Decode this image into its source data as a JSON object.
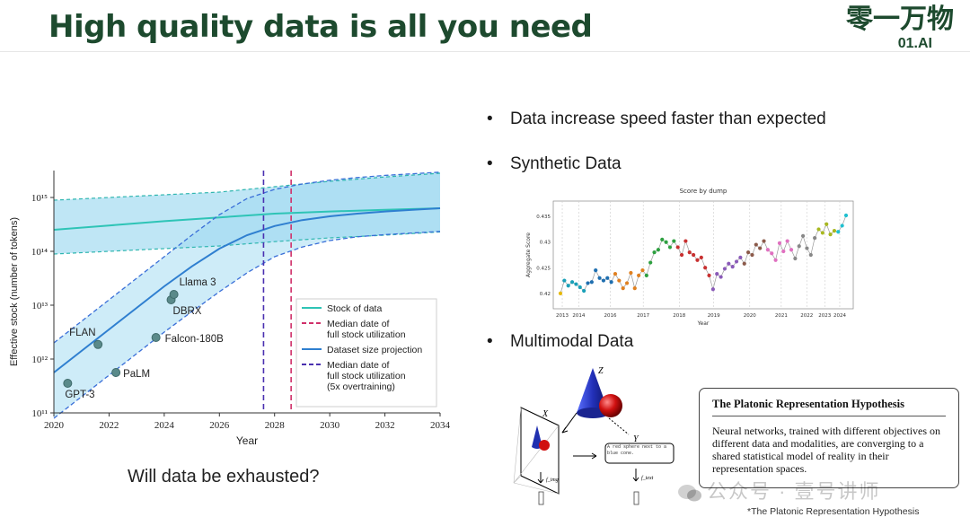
{
  "slide": {
    "title": "High quality data is all you need",
    "question": "Will data be exhausted?",
    "logo_cn": "零一万物",
    "logo_en": "01.AI"
  },
  "bullets": [
    "Data increase speed faster than expected",
    "Synthetic Data",
    "Multimodal Data"
  ],
  "chart_data": [
    {
      "type": "line",
      "xlabel": "Year",
      "ylabel": "Effective stock (number of tokens)",
      "xlim": [
        2020,
        2034
      ],
      "ylim_log10": [
        11,
        15.5
      ],
      "y_scale": "log",
      "x_ticks": [
        "2020",
        "2022",
        "2024",
        "2026",
        "2028",
        "2030",
        "2032",
        "2034"
      ],
      "y_ticks": [
        "10¹¹",
        "10¹²",
        "10¹³",
        "10¹⁴",
        "10¹⁵"
      ],
      "y_tick_values_log10": [
        11,
        12,
        13,
        14,
        15
      ],
      "legend_position": "bottom-right",
      "legend": [
        "Stock of data",
        "Median date of full stock utilization",
        "Dataset size projection",
        "Median date of full stock utilization (5x overtraining)"
      ],
      "stock_of_data_log10": {
        "x": [
          2020,
          2022,
          2024,
          2026,
          2028,
          2030,
          2032,
          2034
        ],
        "mid": [
          14.4,
          14.48,
          14.56,
          14.63,
          14.7,
          14.74,
          14.77,
          14.8
        ],
        "upper": [
          14.95,
          15.0,
          15.05,
          15.1,
          15.2,
          15.3,
          15.38,
          15.45
        ],
        "lower": [
          13.95,
          14.0,
          14.05,
          14.1,
          14.18,
          14.25,
          14.3,
          14.36
        ]
      },
      "projection_log10": {
        "x": [
          2020,
          2021,
          2022,
          2023,
          2024,
          2025,
          2026,
          2027,
          2028,
          2029,
          2030,
          2031,
          2032,
          2033,
          2034
        ],
        "mid": [
          11.75,
          12.15,
          12.55,
          12.95,
          13.35,
          13.72,
          14.05,
          14.3,
          14.47,
          14.58,
          14.65,
          14.7,
          14.74,
          14.77,
          14.8
        ],
        "upper": [
          12.3,
          12.7,
          13.1,
          13.5,
          13.9,
          14.3,
          14.68,
          14.98,
          15.15,
          15.25,
          15.32,
          15.37,
          15.41,
          15.44,
          15.47
        ],
        "lower": [
          10.9,
          11.3,
          11.7,
          12.1,
          12.5,
          12.88,
          13.25,
          13.6,
          13.9,
          14.08,
          14.2,
          14.27,
          14.31,
          14.34,
          14.37
        ]
      },
      "median_dates": {
        "full_stock": 2028.6,
        "overtraining_5x": 2027.6
      },
      "models": [
        {
          "name": "GPT-3",
          "year": 2020.5,
          "log10_tokens": 11.55
        },
        {
          "name": "FLAN",
          "year": 2021.6,
          "log10_tokens": 12.27
        },
        {
          "name": "PaLM",
          "year": 2022.25,
          "log10_tokens": 11.75
        },
        {
          "name": "Falcon-180B",
          "year": 2023.7,
          "log10_tokens": 12.4
        },
        {
          "name": "DBRX",
          "year": 2024.25,
          "log10_tokens": 13.1
        },
        {
          "name": "Llama 3",
          "year": 2024.35,
          "log10_tokens": 13.2
        }
      ]
    },
    {
      "type": "scatter",
      "title": "Score by dump",
      "xlabel": "Year",
      "ylabel": "Aggregate Score",
      "ylim": [
        0.417,
        0.438
      ],
      "y_ticks": [
        "0.42",
        "0.425",
        "0.43",
        "0.435"
      ],
      "y_tick_values": [
        0.42,
        0.425,
        0.43,
        0.435
      ],
      "x_ticks": [
        "2013",
        "2014",
        "2016",
        "2017",
        "2018",
        "2019",
        "2020",
        "2021",
        "2022",
        "2023",
        "2024"
      ],
      "x_tick_positions": [
        0.03,
        0.085,
        0.19,
        0.3,
        0.42,
        0.535,
        0.655,
        0.76,
        0.845,
        0.905,
        0.955
      ],
      "scores": [
        0.42,
        0.4225,
        0.4215,
        0.4222,
        0.4218,
        0.4212,
        0.4205,
        0.422,
        0.4222,
        0.4245,
        0.423,
        0.4225,
        0.423,
        0.4222,
        0.4238,
        0.4225,
        0.421,
        0.422,
        0.424,
        0.421,
        0.4235,
        0.4245,
        0.4235,
        0.426,
        0.428,
        0.4285,
        0.4305,
        0.43,
        0.429,
        0.4302,
        0.429,
        0.4275,
        0.4302,
        0.428,
        0.4275,
        0.4265,
        0.427,
        0.425,
        0.4235,
        0.4208,
        0.4238,
        0.4232,
        0.4248,
        0.4258,
        0.4252,
        0.4262,
        0.427,
        0.4258,
        0.428,
        0.4275,
        0.4295,
        0.4288,
        0.4302,
        0.4285,
        0.4278,
        0.4265,
        0.4298,
        0.4282,
        0.4302,
        0.4285,
        0.4268,
        0.4292,
        0.4312,
        0.4288,
        0.4275,
        0.4308,
        0.4325,
        0.4318,
        0.4335,
        0.4315,
        0.4322,
        0.432,
        0.4332,
        0.4352
      ],
      "colors": [
        "#e6b800",
        "#1aa0b8",
        "#1aa0b8",
        "#1aa0b8",
        "#1aa0b8",
        "#1aa0b8",
        "#1aa0b8",
        "#1f6fb0",
        "#1f6fb0",
        "#1f6fb0",
        "#1f6fb0",
        "#1f6fb0",
        "#1f6fb0",
        "#1f6fb0",
        "#e08020",
        "#e08020",
        "#e08020",
        "#e08020",
        "#e08020",
        "#e08020",
        "#e08020",
        "#e08020",
        "#2ea040",
        "#2ea040",
        "#2ea040",
        "#2ea040",
        "#2ea040",
        "#2ea040",
        "#2ea040",
        "#2ea040",
        "#c83030",
        "#c83030",
        "#c83030",
        "#c83030",
        "#c83030",
        "#c83030",
        "#c83030",
        "#c83030",
        "#c83030",
        "#8a5ab8",
        "#8a5ab8",
        "#8a5ab8",
        "#8a5ab8",
        "#8a5ab8",
        "#8a5ab8",
        "#8a5ab8",
        "#8a5ab8",
        "#8b5a4a",
        "#8b5a4a",
        "#8b5a4a",
        "#8b5a4a",
        "#8b5a4a",
        "#8b5a4a",
        "#e070c0",
        "#e070c0",
        "#e070c0",
        "#e070c0",
        "#e070c0",
        "#e070c0",
        "#e070c0",
        "#888888",
        "#888888",
        "#888888",
        "#888888",
        "#888888",
        "#888888",
        "#a8b820",
        "#a8b820",
        "#a8b820",
        "#a8b820",
        "#a8b820",
        "#20c0d0",
        "#20c0d0",
        "#20c0d0"
      ]
    }
  ],
  "multimodal": {
    "label_x": "X",
    "label_y": "Y",
    "label_z": "Z",
    "f_img": "f_img",
    "f_text": "f_text",
    "caption_text": "A red sphere next to a blue cone.",
    "prh_title": "The Platonic Representation Hypothesis",
    "prh_body": "Neural networks, trained with different objectives on different data and modalities, are converging to a shared statistical model of reality in their representation spaces.",
    "footnote": "*The Platonic Representation Hypothesis"
  },
  "watermark": "公众号 · 壹号讲师"
}
